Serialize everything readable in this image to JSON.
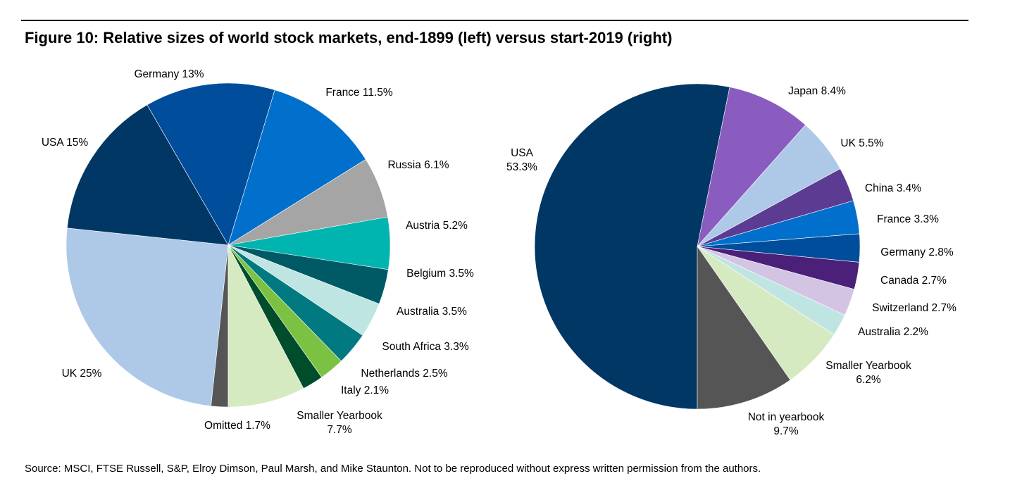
{
  "title": "Figure 10: Relative sizes of world stock markets, end-1899 (left) versus start-2019 (right)",
  "source": "Source: MSCI, FTSE Russell, S&P, Elroy Dimson, Paul Marsh, and Mike Staunton. Not to be reproduced without express written permission from the authors.",
  "chart_data": [
    {
      "type": "pie",
      "title": "",
      "slices": [
        {
          "label": "Omitted 1.7%",
          "value": 1.7,
          "color": "#555555"
        },
        {
          "label": "UK 25%",
          "value": 25,
          "color": "#aec8e8"
        },
        {
          "label": "USA 15%",
          "value": 15,
          "color": "#003764"
        },
        {
          "label": "Germany 13%",
          "value": 13,
          "color": "#004d9b"
        },
        {
          "label": "France 11.5%",
          "value": 11.5,
          "color": "#0070cc"
        },
        {
          "label": "Russia 6.1%",
          "value": 6.1,
          "color": "#a5a5a5"
        },
        {
          "label": "Austria 5.2%",
          "value": 5.2,
          "color": "#00b5b0"
        },
        {
          "label": "Belgium 3.5%",
          "value": 3.5,
          "color": "#005a65"
        },
        {
          "label": "Australia 3.5%",
          "value": 3.5,
          "color": "#bfe5e3"
        },
        {
          "label": "South Africa 3.3%",
          "value": 3.3,
          "color": "#007a80"
        },
        {
          "label": "Netherlands 2.5%",
          "value": 2.5,
          "color": "#7cc242"
        },
        {
          "label": "Italy 2.1%",
          "value": 2.1,
          "color": "#004d2c"
        },
        {
          "label": "Smaller Yearbook\n7.7%",
          "value": 7.7,
          "color": "#d6eac2"
        }
      ]
    },
    {
      "type": "pie",
      "title": "",
      "slices": [
        {
          "label": "USA\n53.3%",
          "value": 53.3,
          "color": "#003764"
        },
        {
          "label": "Japan 8.4%",
          "value": 8.4,
          "color": "#8a5cbf"
        },
        {
          "label": "UK 5.5%",
          "value": 5.5,
          "color": "#aec8e8"
        },
        {
          "label": "China 3.4%",
          "value": 3.4,
          "color": "#5c3b93"
        },
        {
          "label": "France 3.3%",
          "value": 3.3,
          "color": "#0070cc"
        },
        {
          "label": "Germany 2.8%",
          "value": 2.8,
          "color": "#004d9b"
        },
        {
          "label": "Canada 2.7%",
          "value": 2.7,
          "color": "#4a2078"
        },
        {
          "label": "Switzerland 2.7%",
          "value": 2.7,
          "color": "#d4c4e4"
        },
        {
          "label": "Australia 2.2%",
          "value": 2.2,
          "color": "#bfe5e3"
        },
        {
          "label": "Smaller Yearbook\n6.2%",
          "value": 6.2,
          "color": "#d6eac2"
        },
        {
          "label": "Not in yearbook\n9.7%",
          "value": 9.7,
          "color": "#555555"
        }
      ]
    }
  ]
}
